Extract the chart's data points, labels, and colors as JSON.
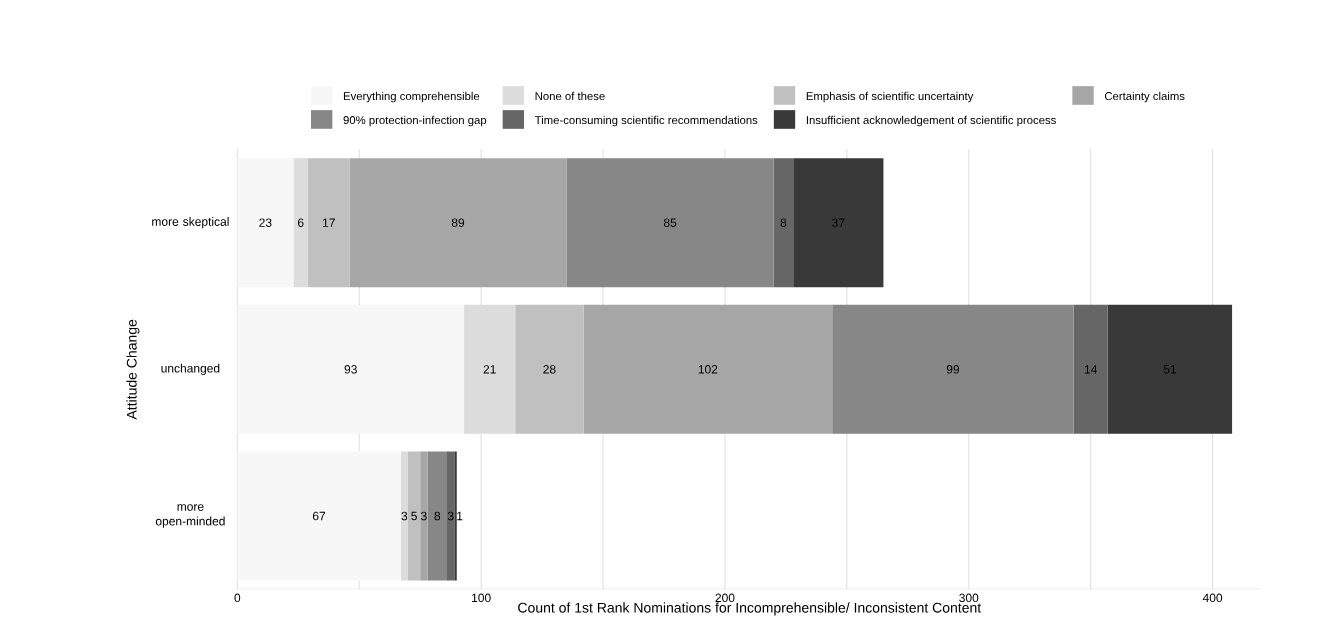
{
  "chart_data": {
    "type": "bar",
    "orientation": "horizontal",
    "stacked": true,
    "data_labels": true,
    "grid": "x",
    "legend": "top",
    "xlabel": "Count of 1st Rank Nominations for Incomprehensible/ Inconsistent Content",
    "ylabel": "Attitude Change",
    "categories": [
      "more skeptical",
      "unchanged",
      "more open-minded"
    ],
    "xlim": [
      0,
      420
    ],
    "xticks": [
      0,
      {
        "value": 50,
        "label": null
      },
      100,
      {
        "value": 150,
        "label": null
      },
      200,
      {
        "value": 250,
        "label": null
      },
      300,
      {
        "value": 350,
        "label": null
      },
      400
    ],
    "series": [
      {
        "name": "Everything comprehensible",
        "color": "#f7f7f7",
        "values": [
          23,
          93,
          67
        ]
      },
      {
        "name": "None of these",
        "color": "#dcdcdc",
        "values": [
          6,
          21,
          3
        ]
      },
      {
        "name": "Emphasis of scientific uncertainty",
        "color": "#c0c0c0",
        "values": [
          17,
          28,
          5
        ]
      },
      {
        "name": "Certainty claims",
        "color": "#a6a6a6",
        "values": [
          89,
          102,
          3
        ]
      },
      {
        "name": "90% protection-infection gap",
        "color": "#878787",
        "values": [
          85,
          99,
          8
        ]
      },
      {
        "name": "Time-consuming scientific recommendations",
        "color": "#666666",
        "values": [
          8,
          14,
          3
        ]
      },
      {
        "name": "Insufficient acknowledgement of scientific process",
        "color": "#393939",
        "values": [
          37,
          51,
          1
        ]
      }
    ]
  }
}
